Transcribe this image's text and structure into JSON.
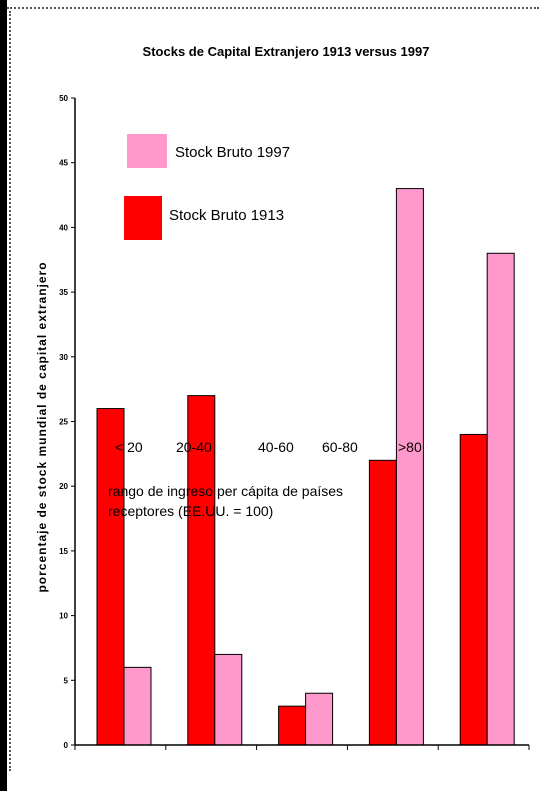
{
  "chart_data": {
    "type": "bar",
    "title": "Stocks de Capital Extranjero 1913 versus 1997",
    "xlabel": "",
    "ylabel": "porcentaje de stock mundial de capital extranjero",
    "ylim": [
      0,
      50
    ],
    "yticks": [
      0,
      5,
      10,
      15,
      20,
      25,
      30,
      35,
      40,
      45,
      50
    ],
    "categories": [
      "< 20",
      "20-40",
      "40-60",
      "60-80",
      ">80"
    ],
    "series": [
      {
        "name": "Stock Bruto 1913",
        "color": "#ff0000",
        "values": [
          26,
          27,
          3,
          22,
          24
        ]
      },
      {
        "name": "Stock Bruto 1997",
        "color": "#ff99cc",
        "values": [
          6,
          7,
          4,
          43,
          38
        ]
      }
    ],
    "annotation": [
      "rango de ingreso per cápita de países",
      "receptores    (EE.UU. = 100)"
    ],
    "legend_order": [
      1,
      0
    ],
    "legend_placement": "top-left",
    "grid": false
  }
}
